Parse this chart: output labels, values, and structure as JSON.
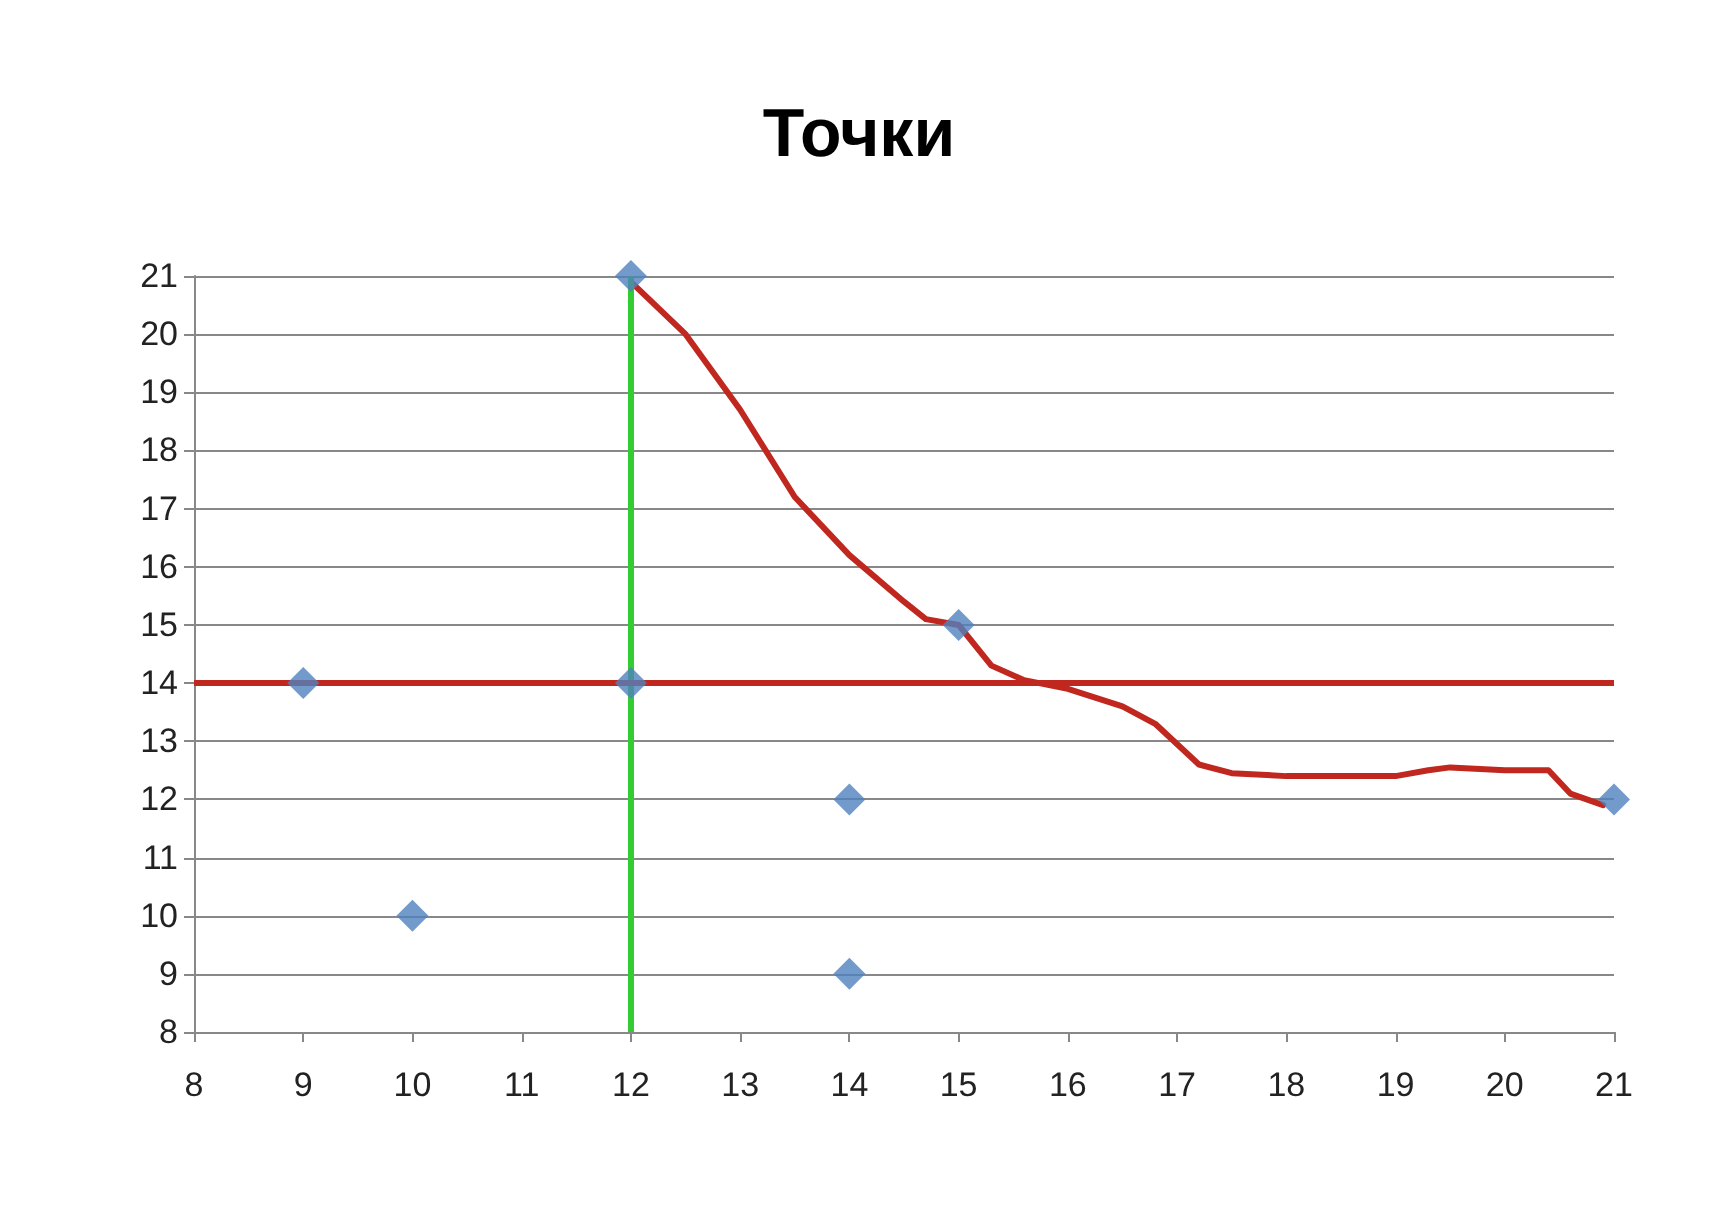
{
  "chart_data": {
    "type": "scatter",
    "title": "Точки",
    "xlim": [
      8,
      21
    ],
    "xticks": [
      8,
      9,
      10,
      11,
      12,
      13,
      14,
      15,
      16,
      17,
      18,
      19,
      20,
      21
    ],
    "ylim": [
      8,
      21
    ],
    "yticks": [
      8,
      9,
      10,
      11,
      12,
      13,
      14,
      15,
      16,
      17,
      18,
      19,
      20,
      21
    ],
    "grid": "y",
    "series": [
      {
        "color": "#4f81bd",
        "marker": "diamond",
        "x": [
          9,
          10,
          12,
          12,
          14,
          14,
          15,
          21
        ],
        "values": [
          14,
          10,
          21,
          14,
          12,
          9,
          15,
          12
        ]
      },
      {
        "type": "line",
        "color": "#c0281f",
        "marker": "none",
        "line_style": "solid",
        "x": [
          12,
          12.5,
          13,
          13.5,
          14,
          14.5,
          14.7,
          15,
          15.3,
          15.6,
          16,
          16.5,
          16.8,
          17.2,
          17.5,
          18,
          19,
          19.3,
          19.5,
          20,
          20.4,
          20.6,
          20.9
        ],
        "values": [
          20.9,
          20,
          18.7,
          17.2,
          16.2,
          15.4,
          15.1,
          15,
          14.3,
          14.05,
          13.9,
          13.6,
          13.3,
          12.6,
          12.45,
          12.4,
          12.4,
          12.5,
          12.55,
          12.5,
          12.5,
          12.1,
          11.9
        ]
      }
    ],
    "ref_lines": [
      {
        "axis": "x",
        "value": 12,
        "color": "#33cc33",
        "line_style": "solid"
      },
      {
        "axis": "y",
        "value": 14,
        "color": "#c0281f",
        "line_style": "solid"
      }
    ]
  }
}
